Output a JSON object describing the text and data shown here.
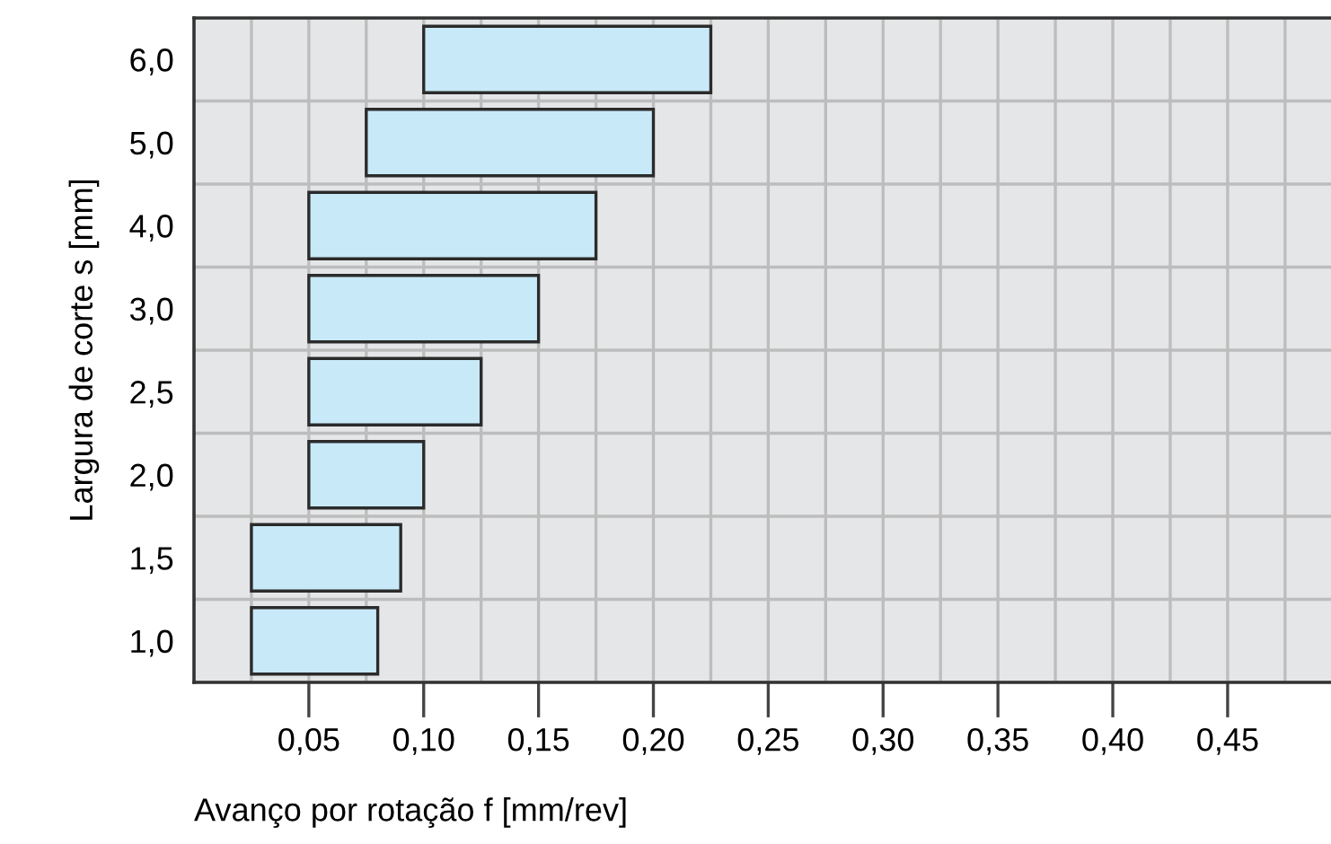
{
  "chart_data": {
    "type": "bar",
    "orientation": "horizontal",
    "xlabel": "Avanço por rotação f [mm/rev]",
    "ylabel": "Largura de corte s [mm]",
    "categories": [
      "6,0",
      "5,0",
      "4,0",
      "3,0",
      "2,5",
      "2,0",
      "1,5",
      "1,0"
    ],
    "base": [
      0.1,
      0.075,
      0.05,
      0.05,
      0.05,
      0.05,
      0.025,
      0.025
    ],
    "values": [
      0.125,
      0.125,
      0.125,
      0.1,
      0.075,
      0.05,
      0.065,
      0.055
    ],
    "color": "#c8e9f8",
    "xlim": [
      0,
      0.495
    ],
    "xticks": [
      {
        "value": 0.05,
        "label": "0,05"
      },
      {
        "value": 0.1,
        "label": "0,10"
      },
      {
        "value": 0.15,
        "label": "0,15"
      },
      {
        "value": 0.2,
        "label": "0,20"
      },
      {
        "value": 0.25,
        "label": "0,25"
      },
      {
        "value": 0.3,
        "label": "0,30"
      },
      {
        "value": 0.35,
        "label": "0,35"
      },
      {
        "value": 0.4,
        "label": "0,40"
      },
      {
        "value": 0.45,
        "label": "0,45"
      }
    ],
    "grid": true,
    "legend": false
  }
}
